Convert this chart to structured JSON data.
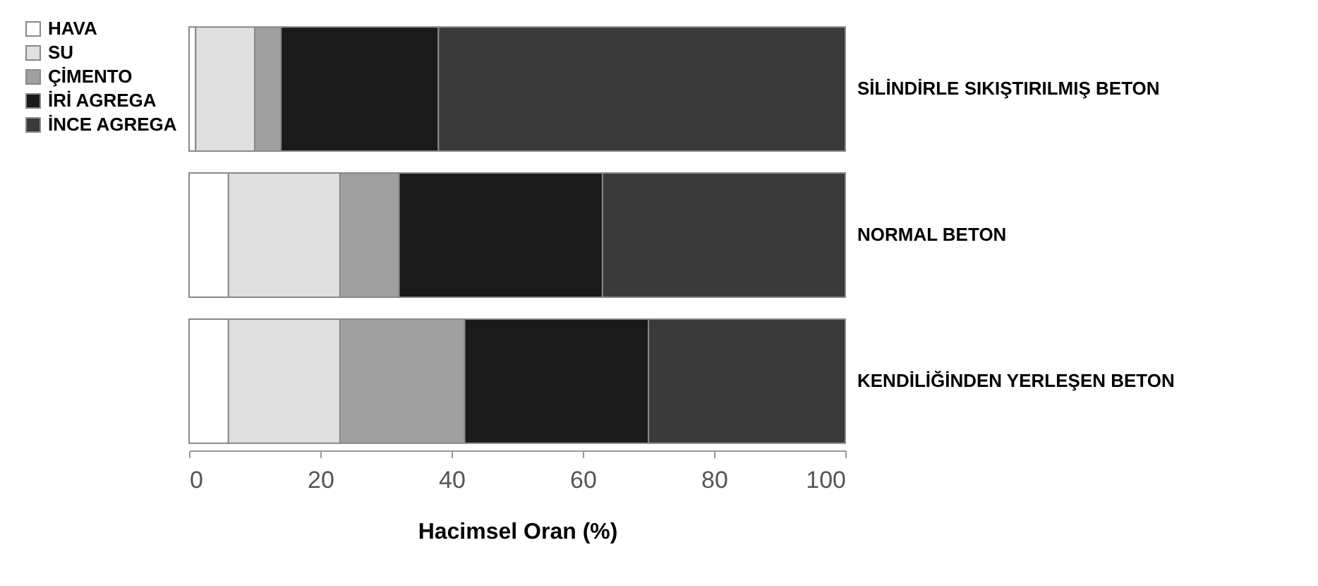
{
  "chart_data": {
    "type": "bar",
    "orientation": "horizontal",
    "stacked": true,
    "categories": [
      "SİLİNDİRLE SIKIŞTIRILMIŞ BETON",
      "NORMAL BETON",
      "KENDİLİĞİNDEN YERLEŞEN BETON"
    ],
    "series": [
      {
        "name": "HAVA",
        "color": "#ffffff",
        "values": [
          1,
          6,
          6
        ]
      },
      {
        "name": "SU",
        "color": "#e0e0e0",
        "values": [
          9,
          17,
          17
        ]
      },
      {
        "name": "ÇİMENTO",
        "color": "#a0a0a0",
        "values": [
          4,
          9,
          19
        ]
      },
      {
        "name": "İRİ AGREGA",
        "color": "#1a1a1a",
        "values": [
          24,
          31,
          28
        ]
      },
      {
        "name": "İNCE AGREGA",
        "color": "#3a3a3a",
        "values": [
          62,
          37,
          30
        ]
      }
    ],
    "xlabel": "Hacimsel Oran (%)",
    "xlim": [
      0,
      100
    ],
    "xticks": [
      0,
      20,
      40,
      60,
      80,
      100
    ],
    "grid": false,
    "legend": "left"
  }
}
